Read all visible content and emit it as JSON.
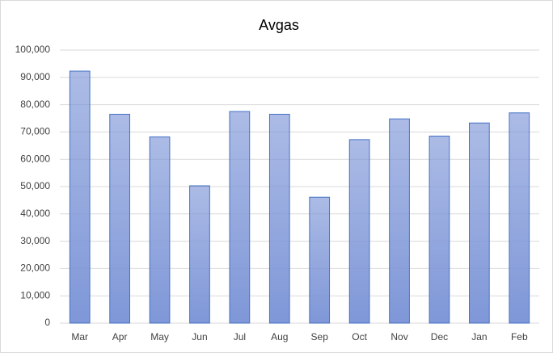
{
  "chart_data": {
    "type": "bar",
    "title": "Avgas",
    "categories": [
      "Mar",
      "Apr",
      "May",
      "Jun",
      "Jul",
      "Aug",
      "Sep",
      "Oct",
      "Nov",
      "Dec",
      "Jan",
      "Feb"
    ],
    "values": [
      92300,
      76500,
      68200,
      50300,
      77500,
      76500,
      46100,
      67200,
      74800,
      68500,
      73300,
      77000
    ],
    "color": "#7f97d8",
    "edge_color": "#4472c4",
    "ylim": [
      0,
      100000
    ],
    "yticks": [
      0,
      {
        "value": 10000,
        "label": "10,000"
      },
      {
        "value": 20000,
        "label": "20,000"
      },
      {
        "value": 30000,
        "label": "30,000"
      },
      {
        "value": 40000,
        "label": "40,000"
      },
      {
        "value": 50000,
        "label": "50,000"
      },
      {
        "value": 60000,
        "label": "60,000"
      },
      {
        "value": 70000,
        "label": "70,000"
      },
      {
        "value": 80000,
        "label": "80,000"
      },
      {
        "value": 90000,
        "label": "90,000"
      },
      {
        "value": 100000,
        "label": "100,000"
      }
    ],
    "grid": true
  }
}
